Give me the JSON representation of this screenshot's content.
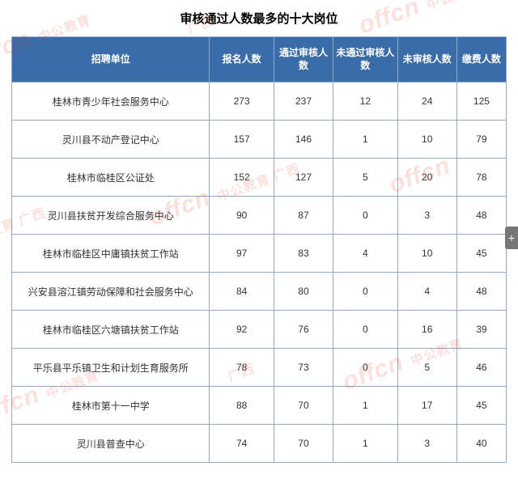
{
  "title": "审核通过人数最多的十大岗位",
  "watermark": "offcn 中公教育 广西",
  "side_tab": "+",
  "columns": [
    {
      "label": "招聘单位",
      "width": "38%"
    },
    {
      "label": "报名人数",
      "width": "12%"
    },
    {
      "label": "通过审核人数",
      "width": "12%"
    },
    {
      "label": "未通过审核人数",
      "width": "13%"
    },
    {
      "label": "未审核人数",
      "width": "12%"
    },
    {
      "label": "缴费人数",
      "width": "11%"
    }
  ],
  "rows": [
    {
      "unit": "桂林市青少年社会服务中心",
      "c1": "273",
      "c2": "237",
      "c3": "12",
      "c4": "24",
      "c5": "125"
    },
    {
      "unit": "灵川县不动产登记中心",
      "c1": "157",
      "c2": "146",
      "c3": "1",
      "c4": "10",
      "c5": "79"
    },
    {
      "unit": "桂林市临桂区公证处",
      "c1": "152",
      "c2": "127",
      "c3": "5",
      "c4": "20",
      "c5": "78"
    },
    {
      "unit": "灵川县扶贫开发综合服务中心",
      "c1": "90",
      "c2": "87",
      "c3": "0",
      "c4": "3",
      "c5": "48"
    },
    {
      "unit": "桂林市临桂区中庸镇扶贫工作站",
      "c1": "97",
      "c2": "83",
      "c3": "4",
      "c4": "10",
      "c5": "45"
    },
    {
      "unit": "兴安县溶江镇劳动保障和社会服务中心",
      "c1": "84",
      "c2": "80",
      "c3": "0",
      "c4": "4",
      "c5": "48"
    },
    {
      "unit": "桂林市临桂区六塘镇扶贫工作站",
      "c1": "92",
      "c2": "76",
      "c3": "0",
      "c4": "16",
      "c5": "39"
    },
    {
      "unit": "平乐县平乐镇卫生和计划生育服务所",
      "c1": "78",
      "c2": "73",
      "c3": "0",
      "c4": "5",
      "c5": "46"
    },
    {
      "unit": "桂林市第十一中学",
      "c1": "88",
      "c2": "70",
      "c3": "1",
      "c4": "17",
      "c5": "45"
    },
    {
      "unit": "灵川县普查中心",
      "c1": "74",
      "c2": "70",
      "c3": "1",
      "c4": "3",
      "c5": "40"
    }
  ],
  "styles": {
    "header_bg": "#3a6ca8",
    "header_color": "#ffffff",
    "border_color": "#8faacc",
    "watermark_color": "#e83828",
    "watermark_opacity": 0.15
  }
}
